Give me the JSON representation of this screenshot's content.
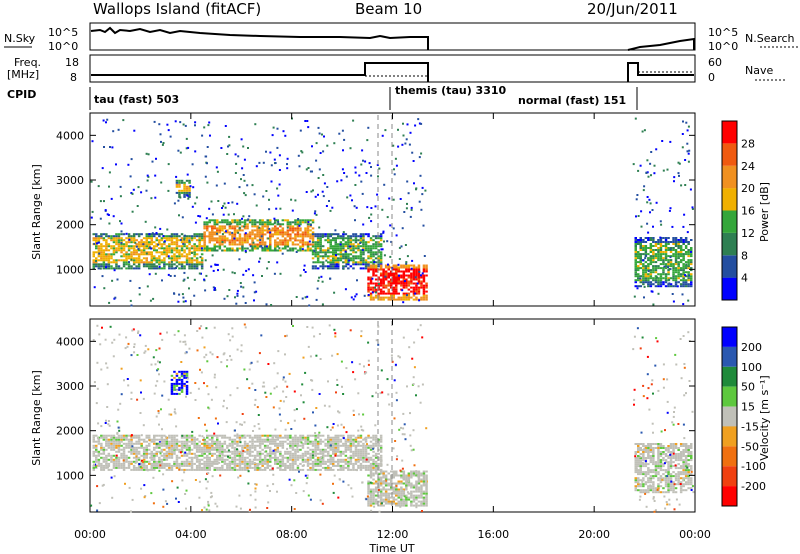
{
  "header": {
    "station": "Wallops Island (fitACF)",
    "beam": "Beam 10",
    "date": "20/Jun/2011"
  },
  "noise_panel": {
    "left_label": "N.Sky",
    "right_label": "N.Search",
    "left_ticks": [
      "10^5",
      "10^0"
    ],
    "right_ticks": [
      "10^5",
      "10^0"
    ]
  },
  "freq_panel": {
    "left_label_1": "Freq.",
    "left_label_2": "[MHz]",
    "left_ticks": [
      "18",
      "8"
    ],
    "right_label": "Nave",
    "right_ticks": [
      "60",
      "0"
    ],
    "cpid_label": "CPID"
  },
  "cpid_modes": [
    {
      "label": "tau (fast) 503"
    },
    {
      "label": "themis (tau) 3310"
    },
    {
      "label": "normal (fast) 151"
    }
  ],
  "colors": {
    "power": [
      "#0000ff",
      "#234ea0",
      "#2e7f52",
      "#34a63a",
      "#f0b000",
      "#f09020",
      "#f05a10",
      "#ff0000"
    ],
    "velocity": [
      "#0000ff",
      "#2a58b0",
      "#1f8a3a",
      "#5ec83e",
      "#c0c0b8",
      "#f0a020",
      "#f07010",
      "#f04010",
      "#ff0000"
    ]
  },
  "chart_data": [
    {
      "type": "heatmap",
      "name": "Power panel",
      "xlabel": "",
      "ylabel": "Slant Range [km]",
      "ylim": [
        180,
        4500
      ],
      "yticks": [
        "1000",
        "2000",
        "3000",
        "4000"
      ],
      "colorbar_label": "Power [dB]",
      "colorbar_ticks": [
        "4",
        "8",
        "12",
        "16",
        "20",
        "24",
        "28"
      ],
      "bands": [
        {
          "x0": 0.1,
          "x1": 4.5,
          "y0": 1000,
          "y1": 1800,
          "cls": 4
        },
        {
          "x0": 4.5,
          "x1": 8.8,
          "y0": 1400,
          "y1": 2100,
          "cls": 5
        },
        {
          "x0": 8.8,
          "x1": 11.5,
          "y0": 1000,
          "y1": 1800,
          "cls": 3
        },
        {
          "x0": 3.4,
          "x1": 4.0,
          "y0": 2600,
          "y1": 3000,
          "cls": 4
        },
        {
          "x0": 11.0,
          "x1": 13.3,
          "y0": 300,
          "y1": 1100,
          "cls": 7
        },
        {
          "x0": 21.6,
          "x1": 23.9,
          "y0": 600,
          "y1": 1700,
          "cls": 3
        }
      ]
    },
    {
      "type": "heatmap",
      "name": "Velocity panel",
      "xlabel": "Time UT",
      "ylabel": "Slant Range [km]",
      "ylim": [
        180,
        4500
      ],
      "yticks": [
        "1000",
        "2000",
        "3000",
        "4000"
      ],
      "colorbar_label": "Velocity [m s⁻¹]",
      "colorbar_ticks": [
        "200",
        "100",
        "50",
        "15",
        "-15",
        "-50",
        "-100",
        "-200"
      ],
      "xticks": [
        "00:00",
        "04:00",
        "08:00",
        "12:00",
        "16:00",
        "20:00",
        "00:00"
      ],
      "xlim": [
        0,
        24
      ],
      "bands": [
        {
          "x0": 0.1,
          "x1": 11.5,
          "y0": 1100,
          "y1": 1900,
          "cls": 4
        },
        {
          "x0": 11.0,
          "x1": 13.3,
          "y0": 300,
          "y1": 1100,
          "cls": 4
        },
        {
          "x0": 3.2,
          "x1": 3.9,
          "y0": 2800,
          "y1": 3300,
          "cls": 0
        },
        {
          "x0": 21.6,
          "x1": 23.9,
          "y0": 600,
          "y1": 1700,
          "cls": 4
        }
      ]
    }
  ]
}
